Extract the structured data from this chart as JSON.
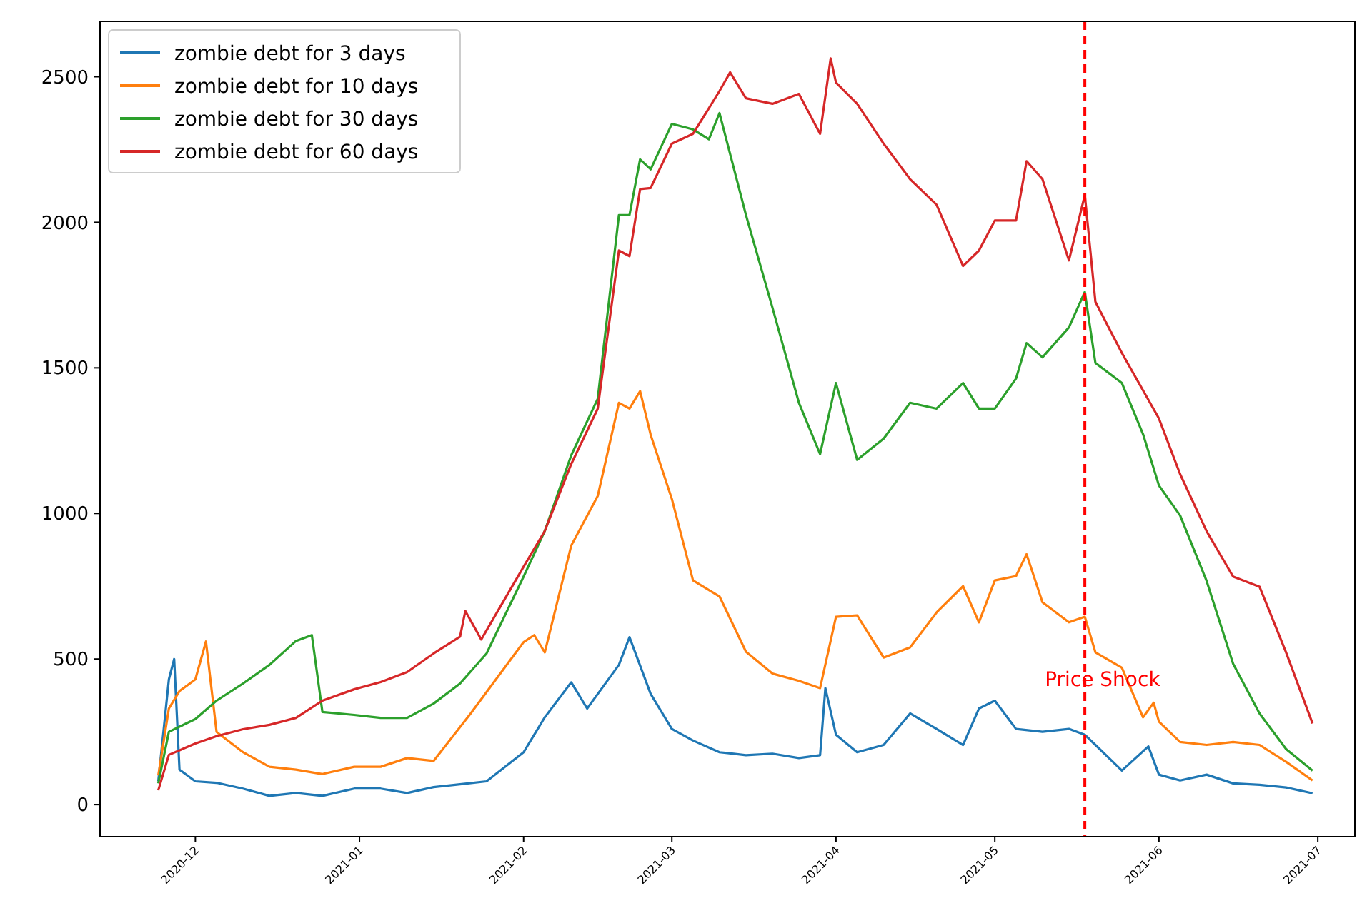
{
  "chart_data": {
    "type": "line",
    "xlim": [
      "2020-11-13",
      "2021-07-08"
    ],
    "ylim": [
      -110,
      2690
    ],
    "xticks": [
      "2020-12",
      "2021-01",
      "2021-02",
      "2021-03",
      "2021-04",
      "2021-05",
      "2021-06",
      "2021-07"
    ],
    "yticks": [
      0,
      500,
      1000,
      1500,
      2000,
      2500
    ],
    "grid": false,
    "legend": "top left",
    "line_style": "solid",
    "ref_lines": [
      {
        "axis": "x",
        "value": "2021-05-18",
        "color": "#ff0000",
        "line_style": "dashed"
      }
    ],
    "annotations": [
      "Price Shock"
    ],
    "series": [
      {
        "name": "zombie debt for 3 days",
        "color": "#1f77b4",
        "x": [
          "2020-11-24",
          "2020-11-26",
          "2020-11-27",
          "2020-11-28",
          "2020-12-01",
          "2020-12-05",
          "2020-12-10",
          "2020-12-15",
          "2020-12-20",
          "2020-12-25",
          "2020-12-31",
          "2021-01-05",
          "2021-01-10",
          "2021-01-15",
          "2021-01-20",
          "2021-01-25",
          "2021-02-01",
          "2021-02-05",
          "2021-02-10",
          "2021-02-13",
          "2021-02-15",
          "2021-02-19",
          "2021-02-21",
          "2021-02-25",
          "2021-03-01",
          "2021-03-05",
          "2021-03-10",
          "2021-03-15",
          "2021-03-20",
          "2021-03-25",
          "2021-03-29",
          "2021-03-30",
          "2021-04-01",
          "2021-04-05",
          "2021-04-10",
          "2021-04-15",
          "2021-04-20",
          "2021-04-25",
          "2021-04-28",
          "2021-05-01",
          "2021-05-05",
          "2021-05-10",
          "2021-05-15",
          "2021-05-18",
          "2021-05-20",
          "2021-05-25",
          "2021-05-30",
          "2021-06-01",
          "2021-06-05",
          "2021-06-10",
          "2021-06-15",
          "2021-06-20",
          "2021-06-25",
          "2021-06-30"
        ],
        "values": [
          80,
          430,
          500,
          120,
          80,
          75,
          55,
          30,
          40,
          30,
          55,
          55,
          40,
          60,
          70,
          80,
          180,
          300,
          420,
          330,
          380,
          480,
          575,
          380,
          260,
          220,
          180,
          170,
          175,
          160,
          170,
          400,
          240,
          180,
          205,
          313,
          260,
          205,
          330,
          357,
          260,
          250,
          260,
          240,
          205,
          117,
          200,
          103,
          83,
          103,
          73,
          68,
          59,
          39
        ]
      },
      {
        "name": "zombie debt for 10 days",
        "color": "#ff7f0e",
        "x": [
          "2020-11-24",
          "2020-11-26",
          "2020-11-28",
          "2020-12-01",
          "2020-12-03",
          "2020-12-05",
          "2020-12-10",
          "2020-12-15",
          "2020-12-20",
          "2020-12-25",
          "2020-12-31",
          "2021-01-05",
          "2021-01-10",
          "2021-01-15",
          "2021-01-22",
          "2021-02-01",
          "2021-02-03",
          "2021-02-05",
          "2021-02-10",
          "2021-02-15",
          "2021-02-19",
          "2021-02-21",
          "2021-02-23",
          "2021-02-25",
          "2021-03-01",
          "2021-03-05",
          "2021-03-10",
          "2021-03-15",
          "2021-03-20",
          "2021-03-25",
          "2021-03-29",
          "2021-04-01",
          "2021-04-05",
          "2021-04-10",
          "2021-04-15",
          "2021-04-20",
          "2021-04-25",
          "2021-04-28",
          "2021-05-01",
          "2021-05-05",
          "2021-05-07",
          "2021-05-10",
          "2021-05-15",
          "2021-05-18",
          "2021-05-20",
          "2021-05-25",
          "2021-05-29",
          "2021-05-31",
          "2021-06-01",
          "2021-06-05",
          "2021-06-10",
          "2021-06-15",
          "2021-06-20",
          "2021-06-25",
          "2021-06-30"
        ],
        "values": [
          100,
          330,
          390,
          430,
          560,
          250,
          180,
          130,
          120,
          105,
          130,
          130,
          160,
          150,
          313,
          558,
          582,
          523,
          890,
          1060,
          1380,
          1360,
          1420,
          1270,
          1050,
          770,
          715,
          525,
          450,
          425,
          400,
          645,
          650,
          505,
          540,
          660,
          750,
          626,
          770,
          785,
          860,
          695,
          626,
          645,
          523,
          470,
          300,
          350,
          285,
          215,
          205,
          215,
          205,
          147,
          83
        ]
      },
      {
        "name": "zombie debt for 30 days",
        "color": "#2ca02c",
        "x": [
          "2020-11-24",
          "2020-11-26",
          "2020-12-01",
          "2020-12-05",
          "2020-12-10",
          "2020-12-15",
          "2020-12-20",
          "2020-12-23",
          "2020-12-25",
          "2020-12-31",
          "2021-01-05",
          "2021-01-10",
          "2021-01-15",
          "2021-01-20",
          "2021-01-25",
          "2021-02-01",
          "2021-02-05",
          "2021-02-10",
          "2021-02-15",
          "2021-02-19",
          "2021-02-21",
          "2021-02-23",
          "2021-02-25",
          "2021-03-01",
          "2021-03-05",
          "2021-03-08",
          "2021-03-10",
          "2021-03-15",
          "2021-03-20",
          "2021-03-25",
          "2021-03-29",
          "2021-04-01",
          "2021-04-05",
          "2021-04-10",
          "2021-04-15",
          "2021-04-20",
          "2021-04-25",
          "2021-04-28",
          "2021-05-01",
          "2021-05-05",
          "2021-05-07",
          "2021-05-10",
          "2021-05-15",
          "2021-05-18",
          "2021-05-20",
          "2021-05-25",
          "2021-05-29",
          "2021-06-01",
          "2021-06-05",
          "2021-06-10",
          "2021-06-15",
          "2021-06-20",
          "2021-06-25",
          "2021-06-30"
        ],
        "values": [
          73,
          250,
          294,
          357,
          416,
          480,
          562,
          582,
          318,
          308,
          298,
          298,
          347,
          416,
          519,
          783,
          940,
          1200,
          1394,
          2025,
          2025,
          2216,
          2182,
          2338,
          2319,
          2285,
          2375,
          2025,
          1707,
          1380,
          1204,
          1448,
          1184,
          1257,
          1380,
          1360,
          1448,
          1360,
          1360,
          1463,
          1585,
          1536,
          1639,
          1761,
          1517,
          1448,
          1272,
          1096,
          993,
          768,
          484,
          313,
          191,
          117
        ]
      },
      {
        "name": "zombie debt for 60 days",
        "color": "#d62728",
        "x": [
          "2020-11-24",
          "2020-11-26",
          "2020-12-01",
          "2020-12-05",
          "2020-12-10",
          "2020-12-15",
          "2020-12-20",
          "2020-12-25",
          "2020-12-31",
          "2021-01-05",
          "2021-01-10",
          "2021-01-15",
          "2021-01-20",
          "2021-01-21",
          "2021-01-24",
          "2021-02-01",
          "2021-02-05",
          "2021-02-10",
          "2021-02-15",
          "2021-02-19",
          "2021-02-21",
          "2021-02-23",
          "2021-02-25",
          "2021-03-01",
          "2021-03-05",
          "2021-03-08",
          "2021-03-10",
          "2021-03-12",
          "2021-03-15",
          "2021-03-20",
          "2021-03-25",
          "2021-03-29",
          "2021-03-31",
          "2021-04-01",
          "2021-04-05",
          "2021-04-10",
          "2021-04-15",
          "2021-04-20",
          "2021-04-25",
          "2021-04-28",
          "2021-05-01",
          "2021-05-05",
          "2021-05-07",
          "2021-05-10",
          "2021-05-15",
          "2021-05-18",
          "2021-05-20",
          "2021-05-25",
          "2021-06-01",
          "2021-06-05",
          "2021-06-10",
          "2021-06-15",
          "2021-06-20",
          "2021-06-25",
          "2021-06-30"
        ],
        "values": [
          49,
          171,
          210,
          235,
          259,
          274,
          298,
          357,
          396,
          421,
          455,
          519,
          577,
          665,
          567,
          817,
          940,
          1170,
          1360,
          1903,
          1884,
          2114,
          2118,
          2270,
          2304,
          2392,
          2451,
          2515,
          2426,
          2407,
          2441,
          2304,
          2563,
          2480,
          2407,
          2270,
          2148,
          2060,
          1850,
          1903,
          2006,
          2006,
          2210,
          2148,
          1869,
          2094,
          1727,
          1551,
          1326,
          1135,
          939,
          783,
          748,
          523,
          279
        ]
      }
    ]
  }
}
